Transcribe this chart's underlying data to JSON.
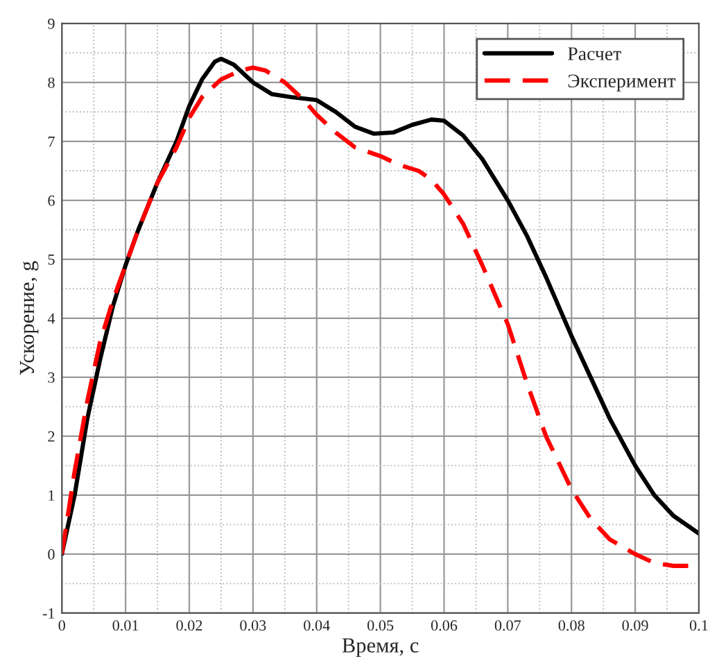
{
  "chart_data": {
    "type": "line",
    "xlabel": "Время, с",
    "ylabel": "Ускорение, g",
    "xlim": [
      0,
      0.1
    ],
    "ylim": [
      -1,
      9
    ],
    "xticks": [
      0,
      0.01,
      0.02,
      0.03,
      0.04,
      0.05,
      0.06,
      0.07,
      0.08,
      0.09,
      0.1
    ],
    "yticks": [
      -1,
      0,
      1,
      2,
      3,
      4,
      5,
      6,
      7,
      8,
      9
    ],
    "grid": true,
    "legend": "top right",
    "marker": "none",
    "series": [
      {
        "name": "Расчет",
        "color": "#000000",
        "line_style": "solid",
        "x": [
          0,
          0.002,
          0.004,
          0.006,
          0.008,
          0.01,
          0.012,
          0.015,
          0.018,
          0.02,
          0.022,
          0.024,
          0.025,
          0.027,
          0.03,
          0.033,
          0.036,
          0.04,
          0.043,
          0.046,
          0.049,
          0.052,
          0.055,
          0.058,
          0.06,
          0.063,
          0.066,
          0.07,
          0.073,
          0.076,
          0.08,
          0.083,
          0.086,
          0.09,
          0.093,
          0.096,
          0.1
        ],
        "values": [
          0,
          1.0,
          2.3,
          3.3,
          4.2,
          4.9,
          5.5,
          6.3,
          7.0,
          7.6,
          8.05,
          8.35,
          8.4,
          8.3,
          8.0,
          7.8,
          7.75,
          7.7,
          7.5,
          7.25,
          7.13,
          7.15,
          7.28,
          7.37,
          7.35,
          7.1,
          6.7,
          6.0,
          5.4,
          4.7,
          3.7,
          3.0,
          2.3,
          1.5,
          1.0,
          0.65,
          0.35
        ]
      },
      {
        "name": "Эксперимент",
        "color": "#ff0000",
        "line_style": "dashed",
        "x": [
          0,
          0.002,
          0.004,
          0.006,
          0.008,
          0.01,
          0.012,
          0.015,
          0.018,
          0.02,
          0.022,
          0.025,
          0.028,
          0.03,
          0.032,
          0.035,
          0.038,
          0.04,
          0.043,
          0.046,
          0.05,
          0.053,
          0.056,
          0.058,
          0.06,
          0.063,
          0.066,
          0.07,
          0.073,
          0.076,
          0.08,
          0.083,
          0.086,
          0.09,
          0.093,
          0.096,
          0.1
        ],
        "values": [
          0,
          1.4,
          2.6,
          3.6,
          4.3,
          4.9,
          5.5,
          6.3,
          6.9,
          7.4,
          7.75,
          8.05,
          8.2,
          8.25,
          8.2,
          8.0,
          7.7,
          7.45,
          7.15,
          6.9,
          6.75,
          6.6,
          6.5,
          6.35,
          6.1,
          5.6,
          4.9,
          3.9,
          2.9,
          2.0,
          1.1,
          0.6,
          0.25,
          0.0,
          -0.15,
          -0.2,
          -0.2
        ]
      }
    ]
  }
}
